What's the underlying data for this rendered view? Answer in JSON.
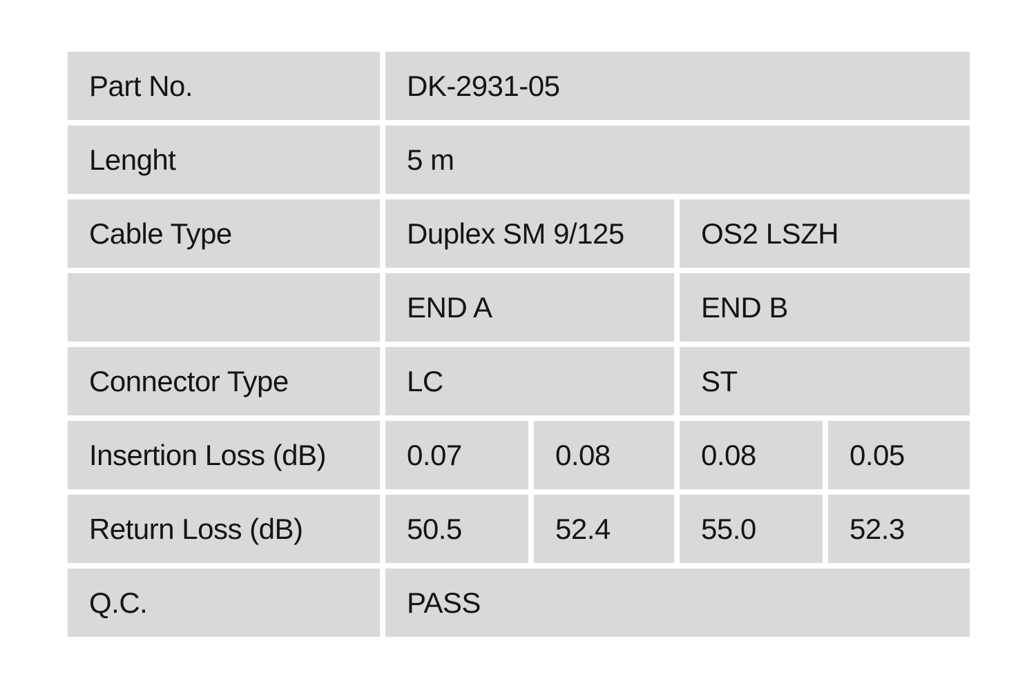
{
  "page": {
    "background": "#ffffff",
    "cell_background": "#d9d9d9",
    "gutter_color": "#ffffff",
    "text_color": "#141414"
  },
  "table": {
    "column_groups": [
      "label",
      "end_a_1",
      "end_a_2",
      "end_b_1",
      "end_b_2"
    ],
    "rows": [
      {
        "label": "Part No.",
        "value": "DK-2931-05"
      },
      {
        "label": "Lenght",
        "value": "5 m"
      },
      {
        "label": "Cable Type",
        "value_a": "Duplex SM 9/125",
        "value_b": "OS2 LSZH"
      },
      {
        "label": "",
        "value_a": "END A",
        "value_b": "END B"
      },
      {
        "label": "Connector Type",
        "value_a": "LC",
        "value_b": "ST"
      },
      {
        "label": "Insertion Loss (dB)",
        "values": [
          "0.07",
          "0.08",
          "0.08",
          "0.05"
        ]
      },
      {
        "label": "Return Loss (dB)",
        "values": [
          "50.5",
          "52.4",
          "55.0",
          "52.3"
        ]
      },
      {
        "label": "Q.C.",
        "value": "PASS"
      }
    ]
  }
}
